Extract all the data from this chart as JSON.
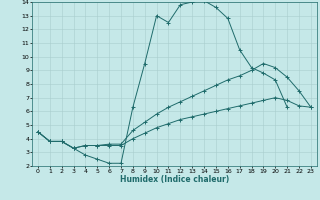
{
  "xlabel": "Humidex (Indice chaleur)",
  "background_color": "#c5e8e8",
  "grid_color": "#aacece",
  "line_color": "#1f6b6b",
  "xlim": [
    -0.5,
    23.5
  ],
  "ylim": [
    2,
    14
  ],
  "xtick_labels": [
    "0",
    "1",
    "2",
    "3",
    "4",
    "5",
    "6",
    "7",
    "8",
    "9",
    "10",
    "11",
    "12",
    "13",
    "14",
    "15",
    "16",
    "17",
    "18",
    "19",
    "20",
    "21",
    "22",
    "23"
  ],
  "ytick_labels": [
    "2",
    "3",
    "4",
    "5",
    "6",
    "7",
    "8",
    "9",
    "10",
    "11",
    "12",
    "13",
    "14"
  ],
  "line1_x": [
    0,
    1,
    2,
    3,
    4,
    5,
    6,
    7,
    8,
    9,
    10,
    11,
    12,
    13,
    14,
    15,
    16,
    17,
    18,
    19,
    20,
    21
  ],
  "line1_y": [
    4.5,
    3.8,
    3.8,
    3.3,
    2.8,
    2.5,
    2.2,
    2.2,
    6.3,
    9.5,
    13.0,
    12.5,
    13.8,
    14.0,
    14.1,
    13.6,
    12.8,
    10.5,
    9.2,
    8.8,
    8.3,
    6.3
  ],
  "line2_x": [
    0,
    1,
    2,
    3,
    4,
    5,
    6,
    7,
    8,
    9,
    10,
    11,
    12,
    13,
    14,
    15,
    16,
    17,
    18,
    19,
    20,
    21,
    22,
    23
  ],
  "line2_y": [
    4.5,
    3.8,
    3.8,
    3.3,
    3.5,
    3.5,
    3.6,
    3.6,
    4.6,
    5.2,
    5.8,
    6.3,
    6.7,
    7.1,
    7.5,
    7.9,
    8.3,
    8.6,
    9.0,
    9.5,
    9.2,
    8.5,
    7.5,
    6.3
  ],
  "line3_x": [
    0,
    1,
    2,
    3,
    4,
    5,
    6,
    7,
    8,
    9,
    10,
    11,
    12,
    13,
    14,
    15,
    16,
    17,
    18,
    19,
    20,
    21,
    22,
    23
  ],
  "line3_y": [
    4.5,
    3.8,
    3.8,
    3.3,
    3.5,
    3.5,
    3.5,
    3.5,
    4.0,
    4.4,
    4.8,
    5.1,
    5.4,
    5.6,
    5.8,
    6.0,
    6.2,
    6.4,
    6.6,
    6.8,
    7.0,
    6.8,
    6.4,
    6.3
  ]
}
